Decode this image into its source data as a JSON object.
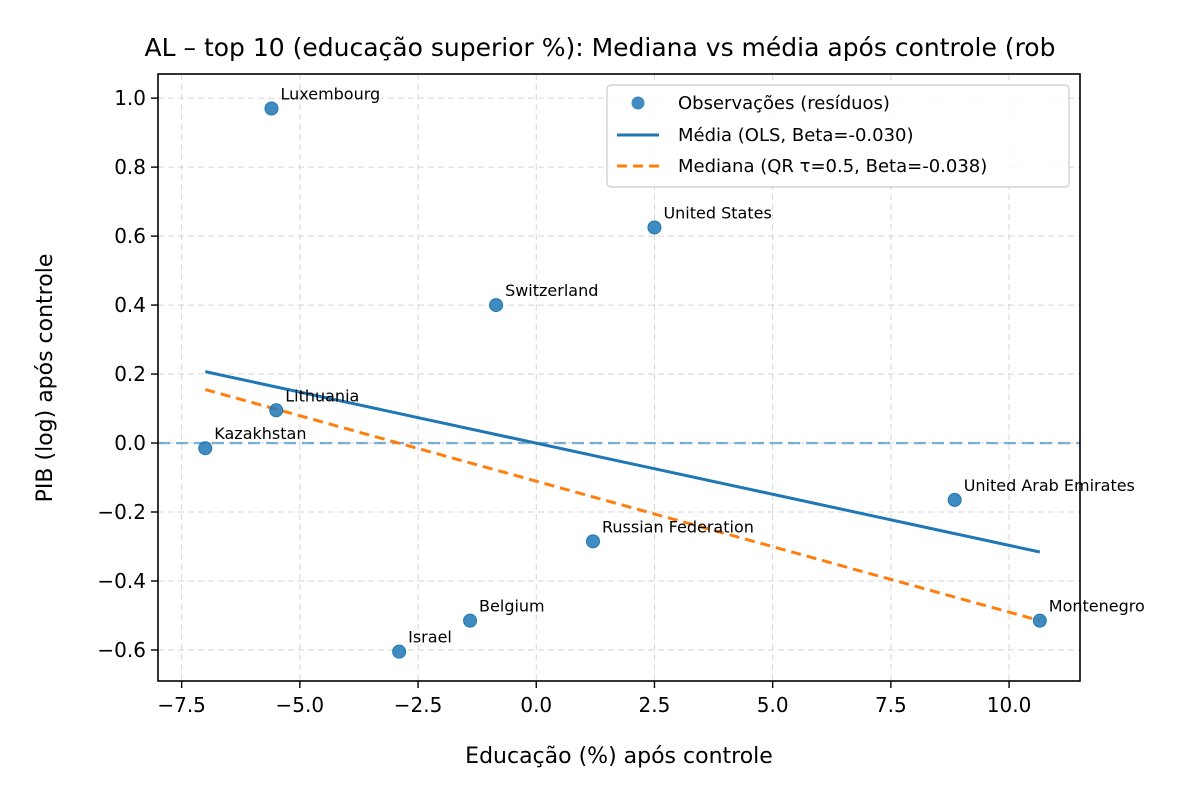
{
  "chart_data": {
    "type": "scatter",
    "title": "AL – top 10 (educação superior %): Mediana vs média após controle (rob",
    "xlabel": "Educação (%) após controle",
    "ylabel": "PIB (log) após controle",
    "xlim": [
      -8.0,
      11.5
    ],
    "ylim": [
      -0.69,
      1.07
    ],
    "x_ticks": [
      -7.5,
      -5.0,
      -2.5,
      0.0,
      2.5,
      5.0,
      7.5,
      10.0
    ],
    "x_tick_labels": [
      "−7.5",
      "−5.0",
      "−2.5",
      "0.0",
      "2.5",
      "5.0",
      "7.5",
      "10.0"
    ],
    "y_ticks": [
      -0.6,
      -0.4,
      -0.2,
      0.0,
      0.2,
      0.4,
      0.6,
      0.8,
      1.0
    ],
    "y_tick_labels": [
      "−0.6",
      "−0.4",
      "−0.2",
      "0.0",
      "0.2",
      "0.4",
      "0.6",
      "0.8",
      "1.0"
    ],
    "grid": true,
    "legend_position": "top-right",
    "reference_line_y": 0.0,
    "points": [
      {
        "label": "Luxembourg",
        "x": -5.6,
        "y": 0.97
      },
      {
        "label": "United States",
        "x": 2.5,
        "y": 0.625
      },
      {
        "label": "Switzerland",
        "x": -0.85,
        "y": 0.4
      },
      {
        "label": "Lithuania",
        "x": -5.5,
        "y": 0.095
      },
      {
        "label": "Kazakhstan",
        "x": -7.0,
        "y": -0.015
      },
      {
        "label": "United Arab Emirates",
        "x": 8.85,
        "y": -0.165
      },
      {
        "label": "Russian Federation",
        "x": 1.2,
        "y": -0.285
      },
      {
        "label": "Belgium",
        "x": -1.4,
        "y": -0.515
      },
      {
        "label": "Israel",
        "x": -2.9,
        "y": -0.605
      },
      {
        "label": "Montenegro",
        "x": 10.65,
        "y": -0.515
      }
    ],
    "series": [
      {
        "name": "Observações (resíduos)",
        "kind": "scatter",
        "color": "#1f77b4"
      },
      {
        "name": "Média (OLS, Beta=-0.030)",
        "kind": "line",
        "color": "#1f77b4",
        "x": [
          -7.0,
          10.65
        ],
        "y": [
          0.207,
          -0.316
        ]
      },
      {
        "name": "Mediana (QR τ=0.5, Beta=-0.038)",
        "kind": "dashed-line",
        "color": "#ff7f0e",
        "x": [
          -7.0,
          10.65
        ],
        "y": [
          0.155,
          -0.515
        ]
      }
    ]
  }
}
